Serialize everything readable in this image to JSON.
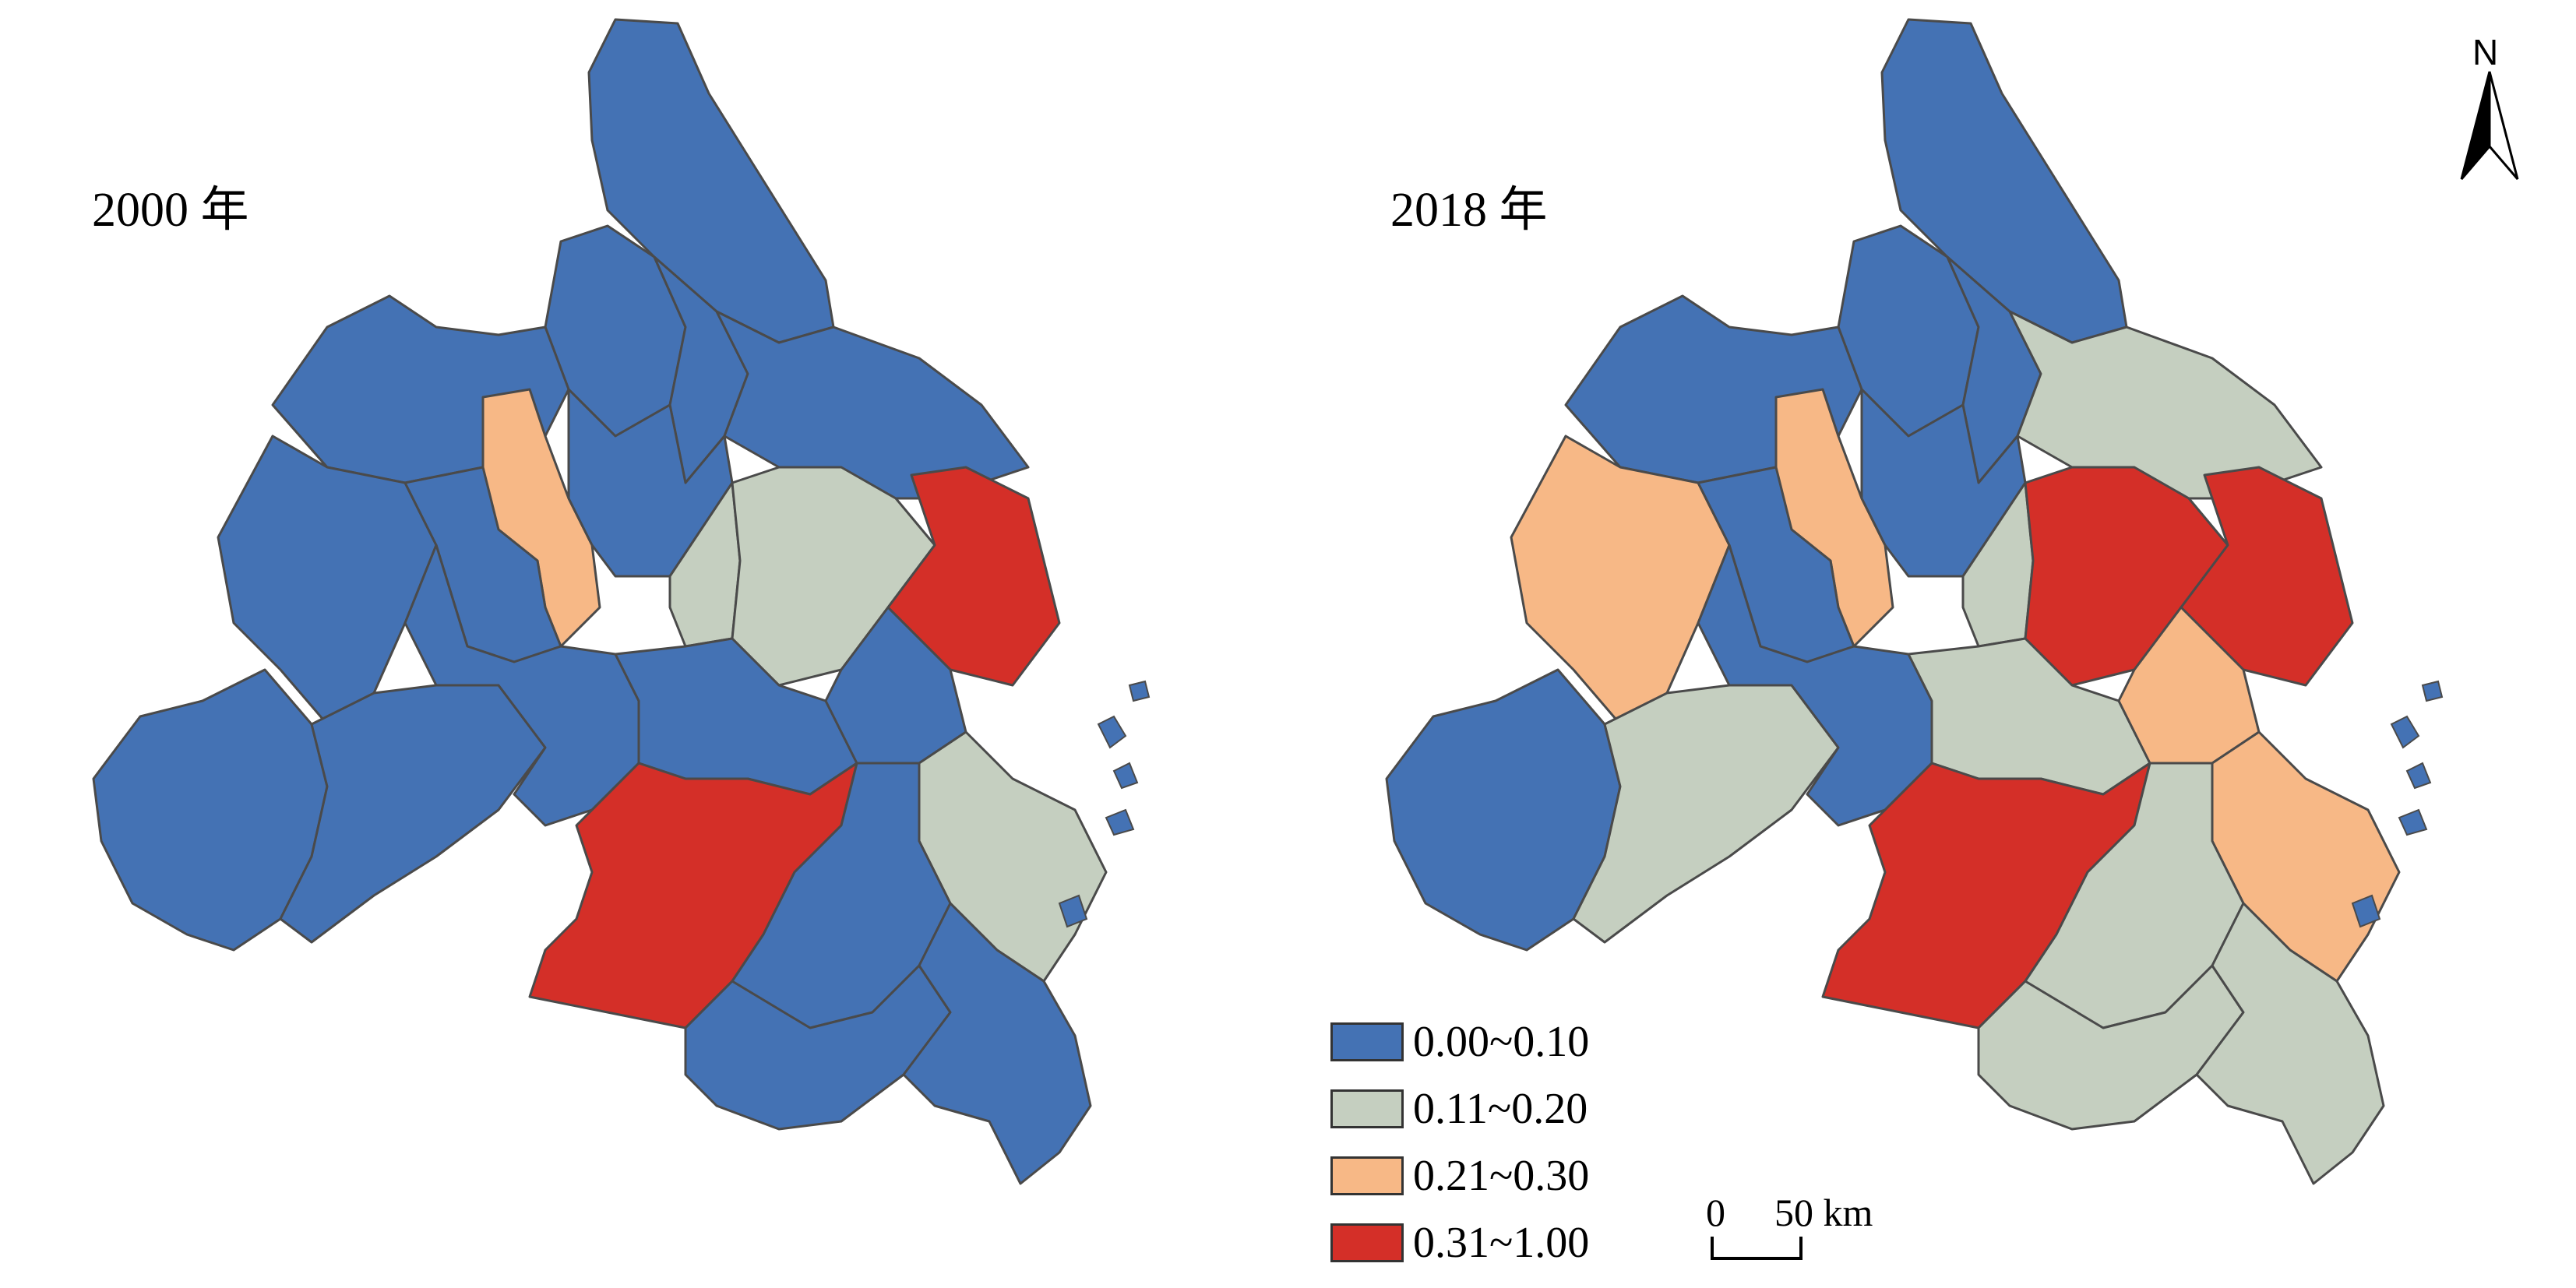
{
  "panels": {
    "left": {
      "label": "2000 年"
    },
    "right": {
      "label": "2018 年"
    }
  },
  "legend": {
    "items": [
      {
        "label": "0.00~0.10",
        "color": "#4472b4"
      },
      {
        "label": "0.11~0.20",
        "color": "#c5cfc0"
      },
      {
        "label": "0.21~0.30",
        "color": "#f7b886"
      },
      {
        "label": "0.31~1.00",
        "color": "#d42f28"
      }
    ]
  },
  "scale_bar": {
    "zero": "0",
    "distance": "50 km"
  },
  "north_arrow": {
    "letter": "N",
    "icon": "north-arrow-icon"
  },
  "colors": {
    "class_1": "#4472b4",
    "class_2": "#c5cfc0",
    "class_3": "#f7b886",
    "class_4": "#d42f28",
    "border": "#4a4a4a"
  }
}
